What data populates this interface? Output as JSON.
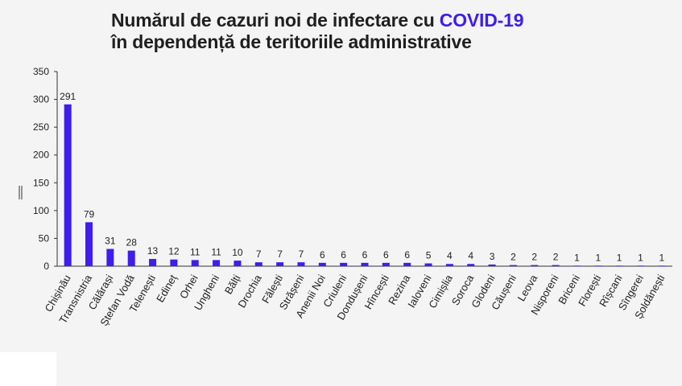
{
  "colors": {
    "background": "#f4f4f4",
    "bar": "#3d1df0",
    "title_accent": "#3d1df0",
    "text": "#1f1f1f",
    "axis": "#333333"
  },
  "title": {
    "line1_prefix": "Numărul de cazuri noi de infectare cu ",
    "line1_accent": "COVID-19",
    "line2": "în dependență de teritoriile administrative"
  },
  "chart_data": {
    "type": "bar",
    "title": "Numărul de cazuri noi de infectare cu COVID-19 în dependență de teritoriile administrative",
    "ylim": [
      0,
      350
    ],
    "yticks": [
      0,
      50,
      100,
      150,
      200,
      250,
      300,
      350
    ],
    "grid": false,
    "categories": [
      "Chișinău",
      "Transnistria",
      "Călărași",
      "Ștefan Vodă",
      "Telenești",
      "Edineț",
      "Orhei",
      "Ungheni",
      "Bălți",
      "Drochia",
      "Fălești",
      "Strășeni",
      "Anenii Noi",
      "Criuleni",
      "Dondușeni",
      "Hîncești",
      "Rezina",
      "Ialoveni",
      "Cimișlia",
      "Soroca",
      "Glodeni",
      "Căușeni",
      "Leova",
      "Nisporeni",
      "Briceni",
      "Florești",
      "Rîșcani",
      "Sîngerei",
      "Șoldănești"
    ],
    "values": [
      291,
      79,
      31,
      28,
      13,
      12,
      11,
      11,
      10,
      7,
      7,
      7,
      6,
      6,
      6,
      6,
      6,
      5,
      4,
      4,
      3,
      2,
      2,
      2,
      1,
      1,
      1,
      1,
      1
    ]
  }
}
